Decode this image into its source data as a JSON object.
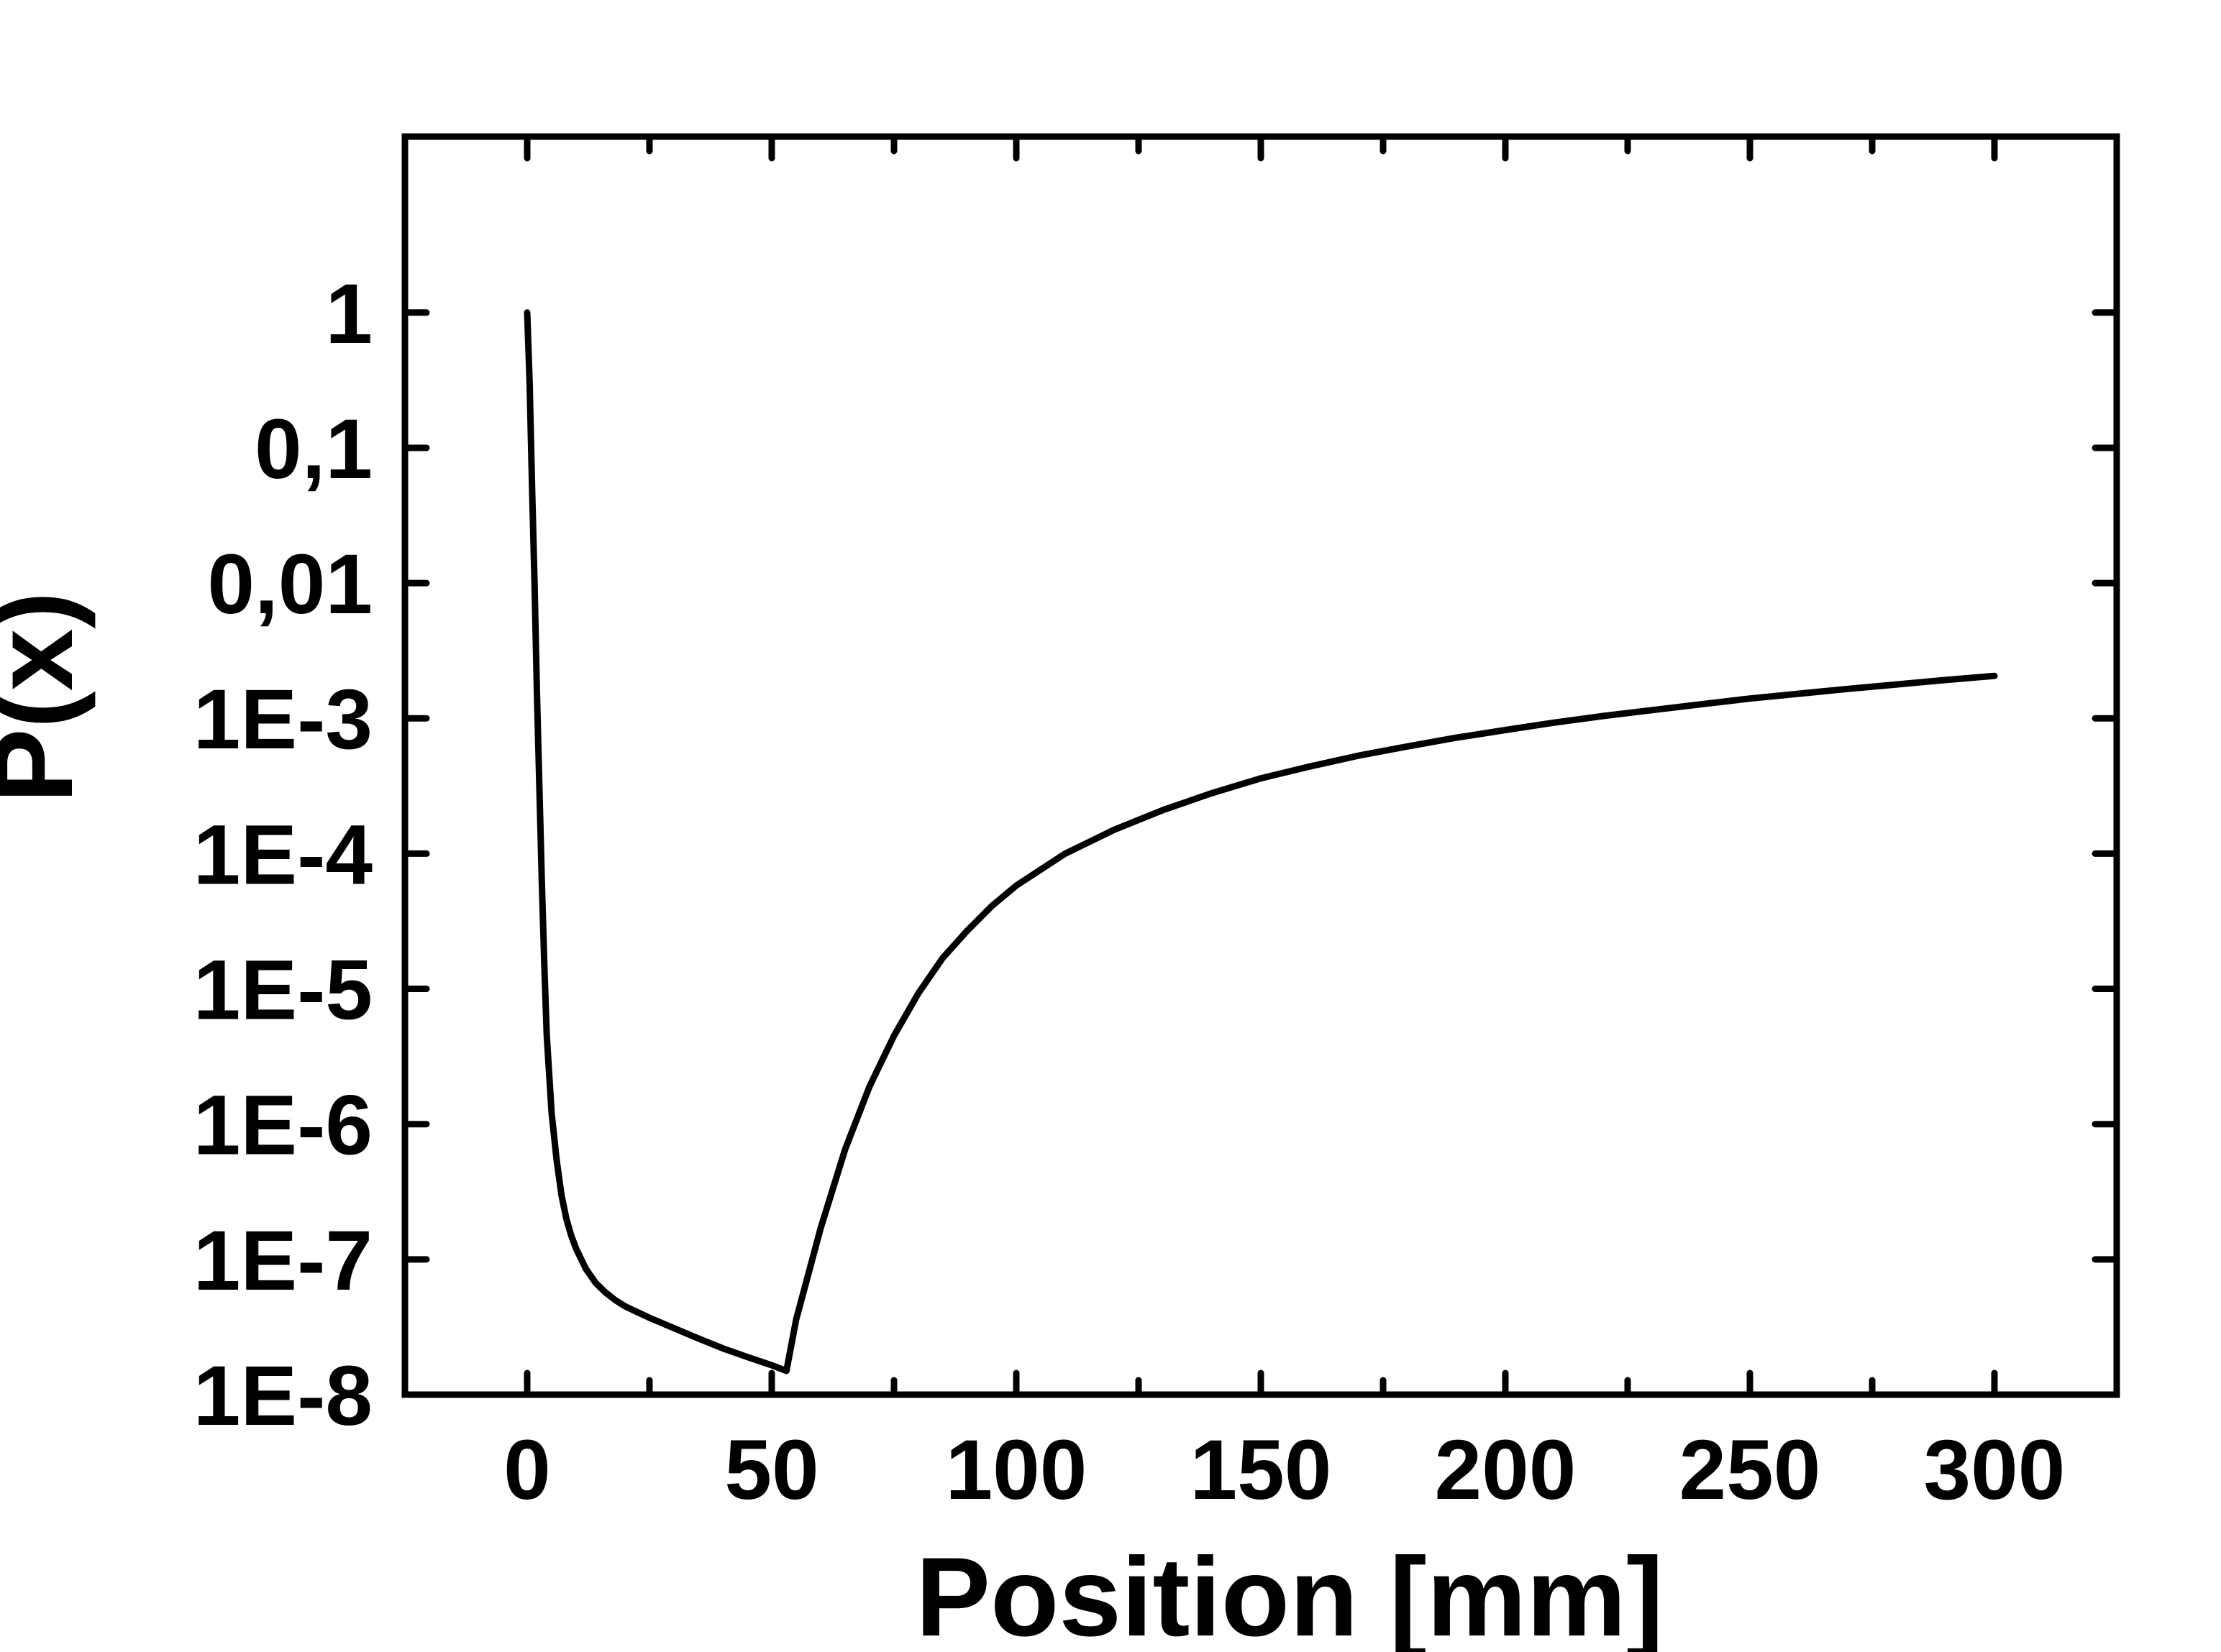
{
  "chart_data": {
    "type": "line",
    "xlabel": "Position [mm]",
    "ylabel": "P(x)",
    "xlim": [
      -25,
      325
    ],
    "ylim": [
      1e-08,
      20
    ],
    "yscale": "log",
    "grid": false,
    "x_ticks": [
      0,
      50,
      100,
      150,
      200,
      250,
      300
    ],
    "x_tick_labels": [
      "0",
      "50",
      "100",
      "150",
      "200",
      "250",
      "300"
    ],
    "x_minor_ticks": [
      25,
      75,
      125,
      175,
      225,
      275
    ],
    "y_ticks": [
      1e-08,
      1e-07,
      1e-06,
      1e-05,
      0.0001,
      0.001,
      0.01,
      0.1,
      1
    ],
    "y_tick_labels": [
      "1E-8",
      "1E-7",
      "1E-6",
      "1E-5",
      "1E-4",
      "1E-3",
      "0,01",
      "0,1",
      "1"
    ],
    "line_color": "#000000",
    "series": [
      {
        "x": [
          0,
          0.5,
          1,
          1.5,
          2,
          2.5,
          3,
          3.5,
          4,
          5,
          6,
          7,
          8,
          9,
          10,
          12,
          14,
          16,
          18,
          20,
          25,
          30,
          35,
          40,
          45,
          50,
          53,
          55,
          60,
          65,
          70,
          75,
          80,
          85,
          90,
          95,
          100,
          110,
          120,
          130,
          140,
          150,
          160,
          170,
          180,
          190,
          200,
          210,
          220,
          230,
          240,
          250,
          260,
          270,
          280,
          290,
          300
        ],
        "y": [
          1,
          0.3,
          0.05,
          0.01,
          0.0015,
          0.0003,
          6e-05,
          1.5e-05,
          4.5e-06,
          1.2e-06,
          5.5e-07,
          3e-07,
          2e-07,
          1.5e-07,
          1.2e-07,
          8.5e-08,
          6.7e-08,
          5.7e-08,
          5e-08,
          4.5e-08,
          3.7e-08,
          3.1e-08,
          2.6e-08,
          2.2e-08,
          1.9e-08,
          1.65e-08,
          1.5e-08,
          3.6e-08,
          1.7e-07,
          6.5e-07,
          1.9e-06,
          4.5e-06,
          9.3e-06,
          1.7e-05,
          2.7e-05,
          4.1e-05,
          5.8e-05,
          0.0001,
          0.00015,
          0.00021,
          0.00028,
          0.00036,
          0.00044,
          0.00053,
          0.00062,
          0.00072,
          0.00082,
          0.00093,
          0.00104,
          0.00115,
          0.00127,
          0.0014,
          0.00152,
          0.00165,
          0.00178,
          0.00192,
          0.00206
        ]
      }
    ]
  }
}
